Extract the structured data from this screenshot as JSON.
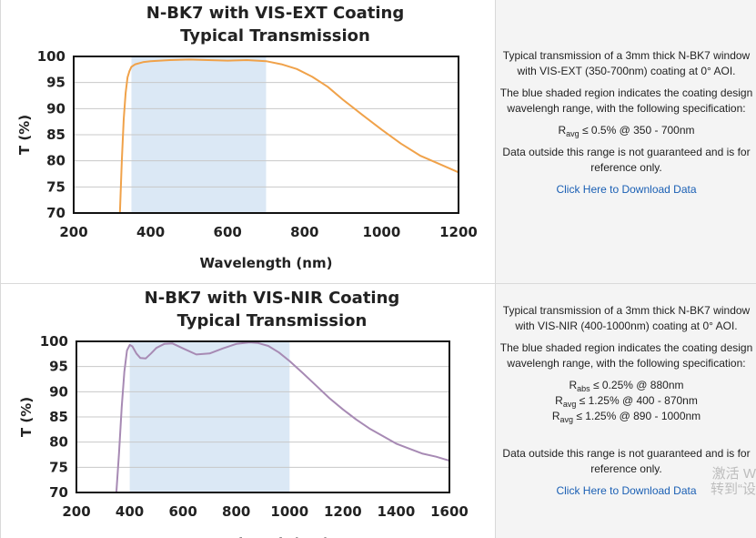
{
  "charts": [
    {
      "title_line1": "N-BK7 with VIS-EXT Coating",
      "title_line2": "Typical Transmission",
      "xlabel": "Wavelength (nm)",
      "ylabel": "T (%)",
      "description": "Typical transmission of a 3mm thick N-BK7 window with VIS-EXT (350-700nm) coating at 0° AOI.",
      "shaded_note": "The blue shaded region indicates the coating design wavelengh range, with the following specification:",
      "specs": [
        {
          "sym": "R",
          "sub": "avg",
          "text": " ≤ 0.5% @ 350 - 700nm"
        }
      ],
      "outside_note": "Data outside this range is not guaranteed and is for reference only.",
      "download_label": "Click Here to Download Data"
    },
    {
      "title_line1": "N-BK7 with VIS-NIR Coating",
      "title_line2": "Typical Transmission",
      "xlabel": "Wavelength (nm)",
      "ylabel": "T (%)",
      "description": "Typical transmission of a 3mm thick N-BK7 window with VIS-NIR (400-1000nm) coating at 0° AOI.",
      "shaded_note": "The blue shaded region indicates the coating design wavelengh range, with the following specification:",
      "specs": [
        {
          "sym": "R",
          "sub": "abs",
          "text": " ≤ 0.25% @ 880nm"
        },
        {
          "sym": "R",
          "sub": "avg",
          "text": " ≤ 1.25% @ 400 - 870nm"
        },
        {
          "sym": "R",
          "sub": "avg",
          "text": " ≤ 1.25% @ 890 - 1000nm"
        }
      ],
      "outside_note": "Data outside this range is not guaranteed and is for reference only.",
      "download_label": "Click Here to Download Data"
    }
  ],
  "watermark": {
    "line1": "激活 W",
    "line2": "转到“设"
  },
  "chart_data": [
    {
      "type": "line",
      "title": "N-BK7 with VIS-EXT Coating Typical Transmission",
      "xlabel": "Wavelength (nm)",
      "ylabel": "T (%)",
      "xlim": [
        200,
        1200
      ],
      "ylim": [
        70,
        100
      ],
      "xticks": [
        200,
        400,
        600,
        800,
        1000,
        1200
      ],
      "yticks": [
        70,
        75,
        80,
        85,
        90,
        95,
        100
      ],
      "grid": true,
      "shaded_range": [
        350,
        700
      ],
      "colors": {
        "line": "#f0a24a",
        "shade": "#dbe8f5"
      },
      "series": [
        {
          "x": [
            320,
            325,
            330,
            335,
            340,
            345,
            350,
            360,
            380,
            400,
            450,
            500,
            550,
            600,
            650,
            700,
            740,
            780,
            820,
            860,
            900,
            950,
            1000,
            1050,
            1100,
            1150,
            1200
          ],
          "y": [
            70,
            80,
            88,
            93,
            96,
            97.2,
            98,
            98.5,
            98.9,
            99.1,
            99.3,
            99.4,
            99.3,
            99.2,
            99.3,
            99.1,
            98.5,
            97.6,
            96.1,
            94.2,
            91.7,
            88.8,
            86.0,
            83.3,
            81.0,
            79.4,
            77.8
          ]
        }
      ]
    },
    {
      "type": "line",
      "title": "N-BK7 with VIS-NIR Coating Typical Transmission",
      "xlabel": "Wavelength (nm)",
      "ylabel": "T (%)",
      "xlim": [
        200,
        1600
      ],
      "ylim": [
        70,
        100
      ],
      "xticks": [
        200,
        400,
        600,
        800,
        1000,
        1200,
        1400,
        1600
      ],
      "yticks": [
        70,
        75,
        80,
        85,
        90,
        95,
        100
      ],
      "grid": true,
      "shaded_range": [
        400,
        1000
      ],
      "colors": {
        "line": "#a78ab4",
        "shade": "#dbe8f5"
      },
      "series": [
        {
          "x": [
            350,
            360,
            370,
            380,
            390,
            400,
            410,
            425,
            440,
            460,
            480,
            500,
            530,
            560,
            600,
            650,
            700,
            750,
            800,
            850,
            880,
            920,
            960,
            1000,
            1050,
            1100,
            1150,
            1200,
            1250,
            1300,
            1350,
            1400,
            1450,
            1500,
            1550,
            1600
          ],
          "y": [
            70,
            78,
            87,
            94,
            98.2,
            99.3,
            99,
            97.6,
            96.7,
            96.6,
            97.6,
            98.7,
            99.5,
            99.6,
            98.6,
            97.4,
            97.6,
            98.6,
            99.5,
            99.8,
            99.7,
            99.1,
            97.8,
            96.1,
            93.7,
            91.2,
            88.7,
            86.5,
            84.5,
            82.7,
            81.2,
            79.7,
            78.7,
            77.7,
            77.1,
            76.3
          ]
        }
      ]
    }
  ]
}
